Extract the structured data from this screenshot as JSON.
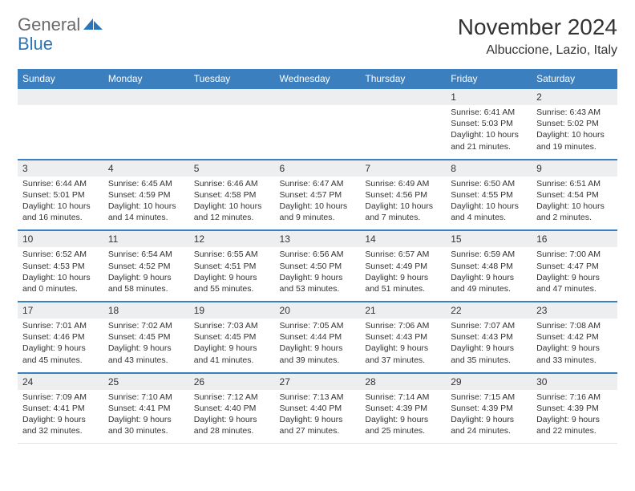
{
  "brand": {
    "word1": "General",
    "word2": "Blue"
  },
  "title": "November 2024",
  "location": "Albuccione, Lazio, Italy",
  "colors": {
    "header_bg": "#3b7fbf",
    "header_text": "#ffffff",
    "daynum_bg": "#eceef0",
    "border_accent": "#3b7fbf",
    "text": "#333333",
    "logo_gray": "#6a6a6a",
    "logo_blue": "#2b76b8"
  },
  "layout": {
    "cols": 7,
    "rows": 5,
    "cell_font_size": 10.5,
    "title_font_size": 28
  },
  "dayNames": [
    "Sunday",
    "Monday",
    "Tuesday",
    "Wednesday",
    "Thursday",
    "Friday",
    "Saturday"
  ],
  "weeks": [
    [
      {
        "n": "",
        "lines": [
          "",
          "",
          "",
          ""
        ]
      },
      {
        "n": "",
        "lines": [
          "",
          "",
          "",
          ""
        ]
      },
      {
        "n": "",
        "lines": [
          "",
          "",
          "",
          ""
        ]
      },
      {
        "n": "",
        "lines": [
          "",
          "",
          "",
          ""
        ]
      },
      {
        "n": "",
        "lines": [
          "",
          "",
          "",
          ""
        ]
      },
      {
        "n": "1",
        "lines": [
          "Sunrise: 6:41 AM",
          "Sunset: 5:03 PM",
          "Daylight: 10 hours",
          "and 21 minutes."
        ]
      },
      {
        "n": "2",
        "lines": [
          "Sunrise: 6:43 AM",
          "Sunset: 5:02 PM",
          "Daylight: 10 hours",
          "and 19 minutes."
        ]
      }
    ],
    [
      {
        "n": "3",
        "lines": [
          "Sunrise: 6:44 AM",
          "Sunset: 5:01 PM",
          "Daylight: 10 hours",
          "and 16 minutes."
        ]
      },
      {
        "n": "4",
        "lines": [
          "Sunrise: 6:45 AM",
          "Sunset: 4:59 PM",
          "Daylight: 10 hours",
          "and 14 minutes."
        ]
      },
      {
        "n": "5",
        "lines": [
          "Sunrise: 6:46 AM",
          "Sunset: 4:58 PM",
          "Daylight: 10 hours",
          "and 12 minutes."
        ]
      },
      {
        "n": "6",
        "lines": [
          "Sunrise: 6:47 AM",
          "Sunset: 4:57 PM",
          "Daylight: 10 hours",
          "and 9 minutes."
        ]
      },
      {
        "n": "7",
        "lines": [
          "Sunrise: 6:49 AM",
          "Sunset: 4:56 PM",
          "Daylight: 10 hours",
          "and 7 minutes."
        ]
      },
      {
        "n": "8",
        "lines": [
          "Sunrise: 6:50 AM",
          "Sunset: 4:55 PM",
          "Daylight: 10 hours",
          "and 4 minutes."
        ]
      },
      {
        "n": "9",
        "lines": [
          "Sunrise: 6:51 AM",
          "Sunset: 4:54 PM",
          "Daylight: 10 hours",
          "and 2 minutes."
        ]
      }
    ],
    [
      {
        "n": "10",
        "lines": [
          "Sunrise: 6:52 AM",
          "Sunset: 4:53 PM",
          "Daylight: 10 hours",
          "and 0 minutes."
        ]
      },
      {
        "n": "11",
        "lines": [
          "Sunrise: 6:54 AM",
          "Sunset: 4:52 PM",
          "Daylight: 9 hours",
          "and 58 minutes."
        ]
      },
      {
        "n": "12",
        "lines": [
          "Sunrise: 6:55 AM",
          "Sunset: 4:51 PM",
          "Daylight: 9 hours",
          "and 55 minutes."
        ]
      },
      {
        "n": "13",
        "lines": [
          "Sunrise: 6:56 AM",
          "Sunset: 4:50 PM",
          "Daylight: 9 hours",
          "and 53 minutes."
        ]
      },
      {
        "n": "14",
        "lines": [
          "Sunrise: 6:57 AM",
          "Sunset: 4:49 PM",
          "Daylight: 9 hours",
          "and 51 minutes."
        ]
      },
      {
        "n": "15",
        "lines": [
          "Sunrise: 6:59 AM",
          "Sunset: 4:48 PM",
          "Daylight: 9 hours",
          "and 49 minutes."
        ]
      },
      {
        "n": "16",
        "lines": [
          "Sunrise: 7:00 AM",
          "Sunset: 4:47 PM",
          "Daylight: 9 hours",
          "and 47 minutes."
        ]
      }
    ],
    [
      {
        "n": "17",
        "lines": [
          "Sunrise: 7:01 AM",
          "Sunset: 4:46 PM",
          "Daylight: 9 hours",
          "and 45 minutes."
        ]
      },
      {
        "n": "18",
        "lines": [
          "Sunrise: 7:02 AM",
          "Sunset: 4:45 PM",
          "Daylight: 9 hours",
          "and 43 minutes."
        ]
      },
      {
        "n": "19",
        "lines": [
          "Sunrise: 7:03 AM",
          "Sunset: 4:45 PM",
          "Daylight: 9 hours",
          "and 41 minutes."
        ]
      },
      {
        "n": "20",
        "lines": [
          "Sunrise: 7:05 AM",
          "Sunset: 4:44 PM",
          "Daylight: 9 hours",
          "and 39 minutes."
        ]
      },
      {
        "n": "21",
        "lines": [
          "Sunrise: 7:06 AM",
          "Sunset: 4:43 PM",
          "Daylight: 9 hours",
          "and 37 minutes."
        ]
      },
      {
        "n": "22",
        "lines": [
          "Sunrise: 7:07 AM",
          "Sunset: 4:43 PM",
          "Daylight: 9 hours",
          "and 35 minutes."
        ]
      },
      {
        "n": "23",
        "lines": [
          "Sunrise: 7:08 AM",
          "Sunset: 4:42 PM",
          "Daylight: 9 hours",
          "and 33 minutes."
        ]
      }
    ],
    [
      {
        "n": "24",
        "lines": [
          "Sunrise: 7:09 AM",
          "Sunset: 4:41 PM",
          "Daylight: 9 hours",
          "and 32 minutes."
        ]
      },
      {
        "n": "25",
        "lines": [
          "Sunrise: 7:10 AM",
          "Sunset: 4:41 PM",
          "Daylight: 9 hours",
          "and 30 minutes."
        ]
      },
      {
        "n": "26",
        "lines": [
          "Sunrise: 7:12 AM",
          "Sunset: 4:40 PM",
          "Daylight: 9 hours",
          "and 28 minutes."
        ]
      },
      {
        "n": "27",
        "lines": [
          "Sunrise: 7:13 AM",
          "Sunset: 4:40 PM",
          "Daylight: 9 hours",
          "and 27 minutes."
        ]
      },
      {
        "n": "28",
        "lines": [
          "Sunrise: 7:14 AM",
          "Sunset: 4:39 PM",
          "Daylight: 9 hours",
          "and 25 minutes."
        ]
      },
      {
        "n": "29",
        "lines": [
          "Sunrise: 7:15 AM",
          "Sunset: 4:39 PM",
          "Daylight: 9 hours",
          "and 24 minutes."
        ]
      },
      {
        "n": "30",
        "lines": [
          "Sunrise: 7:16 AM",
          "Sunset: 4:39 PM",
          "Daylight: 9 hours",
          "and 22 minutes."
        ]
      }
    ]
  ]
}
